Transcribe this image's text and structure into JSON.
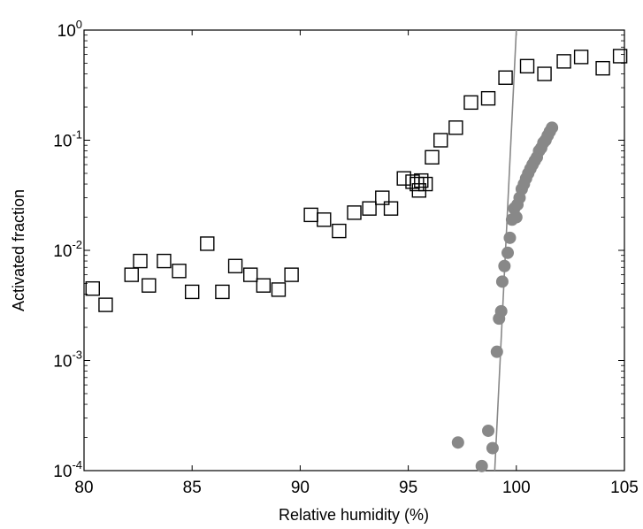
{
  "chart_data": {
    "type": "scatter",
    "title": "",
    "xlabel": "Relative humidity (%)",
    "ylabel": "Activated fraction",
    "xlim": [
      80,
      105
    ],
    "ylim": [
      0.0001,
      1
    ],
    "yscale": "log",
    "grid": false,
    "legend": "none",
    "x_ticks": [
      80,
      85,
      90,
      95,
      100,
      105
    ],
    "x_tick_labels": [
      "80",
      "85",
      "90",
      "95",
      "100",
      "105"
    ],
    "y_ticks": [
      0.0001,
      0.001,
      0.01,
      0.1,
      1
    ],
    "y_tick_labels": [
      {
        "base": "10",
        "exp": "-4"
      },
      {
        "base": "10",
        "exp": "-3"
      },
      {
        "base": "10",
        "exp": "-2"
      },
      {
        "base": "10",
        "exp": "-1"
      },
      {
        "base": "10",
        "exp": "0"
      }
    ],
    "series": [
      {
        "marker": "square-open",
        "color": "#000000",
        "x": [
          80.4,
          81.0,
          82.2,
          82.6,
          83.0,
          83.7,
          84.4,
          85.0,
          85.7,
          86.4,
          87.0,
          87.7,
          88.3,
          89.0,
          89.6,
          90.5,
          91.1,
          91.8,
          92.5,
          93.2,
          93.8,
          94.2,
          94.8,
          95.2,
          95.4,
          95.5,
          95.6,
          95.8,
          96.1,
          96.5,
          97.2,
          97.9,
          98.7,
          99.5,
          100.5,
          101.3,
          102.2,
          103.0,
          104.0,
          104.8
        ],
        "y": [
          0.0045,
          0.0032,
          0.006,
          0.008,
          0.0048,
          0.008,
          0.0065,
          0.0042,
          0.0115,
          0.0042,
          0.0072,
          0.006,
          0.0048,
          0.0044,
          0.006,
          0.021,
          0.019,
          0.015,
          0.022,
          0.024,
          0.03,
          0.024,
          0.045,
          0.042,
          0.04,
          0.035,
          0.043,
          0.04,
          0.07,
          0.1,
          0.13,
          0.22,
          0.24,
          0.37,
          0.47,
          0.4,
          0.52,
          0.57,
          0.45,
          0.58
        ]
      },
      {
        "marker": "circle-filled",
        "color": "#888888",
        "x": [
          97.3,
          98.4,
          98.7,
          98.9,
          99.1,
          99.2,
          99.3,
          99.35,
          99.45,
          99.6,
          99.7,
          99.8,
          99.9,
          100.0,
          100.05,
          100.15,
          100.25,
          100.35,
          100.45,
          100.55,
          100.65,
          100.75,
          100.85,
          100.95,
          101.05,
          101.15,
          101.25,
          101.35,
          101.45,
          101.55,
          101.65
        ],
        "y": [
          0.00018,
          0.00011,
          0.00023,
          0.00016,
          0.0012,
          0.0024,
          0.0028,
          0.0052,
          0.0072,
          0.0095,
          0.013,
          0.019,
          0.024,
          0.02,
          0.026,
          0.03,
          0.036,
          0.04,
          0.045,
          0.05,
          0.055,
          0.06,
          0.065,
          0.07,
          0.08,
          0.085,
          0.095,
          0.1,
          0.11,
          0.12,
          0.13
        ]
      },
      {
        "marker": "line",
        "color": "#888888",
        "x": [
          99.0,
          100.0
        ],
        "y": [
          0.0001,
          1
        ]
      }
    ]
  }
}
